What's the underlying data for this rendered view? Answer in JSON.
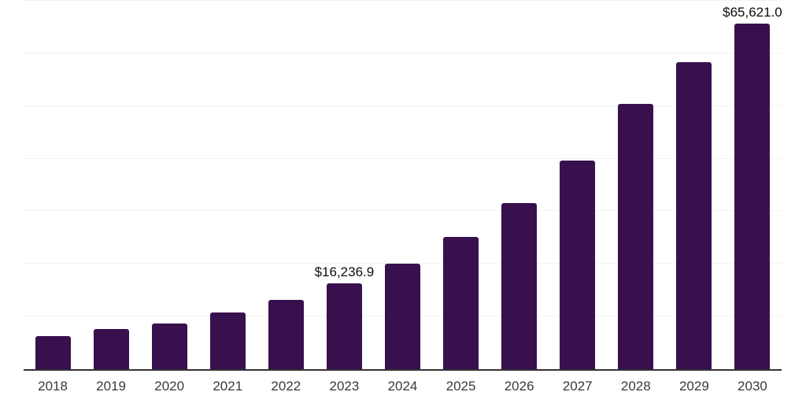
{
  "chart_data": {
    "type": "bar",
    "title": "",
    "xlabel": "",
    "ylabel": "",
    "categories": [
      "2018",
      "2019",
      "2020",
      "2021",
      "2022",
      "2023",
      "2024",
      "2025",
      "2026",
      "2027",
      "2028",
      "2029",
      "2030"
    ],
    "values": [
      6250,
      7600,
      8650,
      10800,
      13100,
      16236.9,
      20100,
      25100,
      31500,
      39700,
      50400,
      58300,
      65621.0
    ],
    "data_labels": [
      "",
      "",
      "",
      "",
      "",
      "$16,236.9",
      "",
      "",
      "",
      "",
      "",
      "",
      "$65,621.0"
    ],
    "ylim": [
      0,
      70000
    ],
    "gridline_step": 10000,
    "grid": true,
    "legend_position": "none",
    "colors": {
      "bar": "#38104d",
      "gridline": "#f2f2f2",
      "axis_line": "#333333",
      "tick_label": "#3a3a3a",
      "data_label": "#0d0d0d",
      "background": "#ffffff"
    }
  }
}
